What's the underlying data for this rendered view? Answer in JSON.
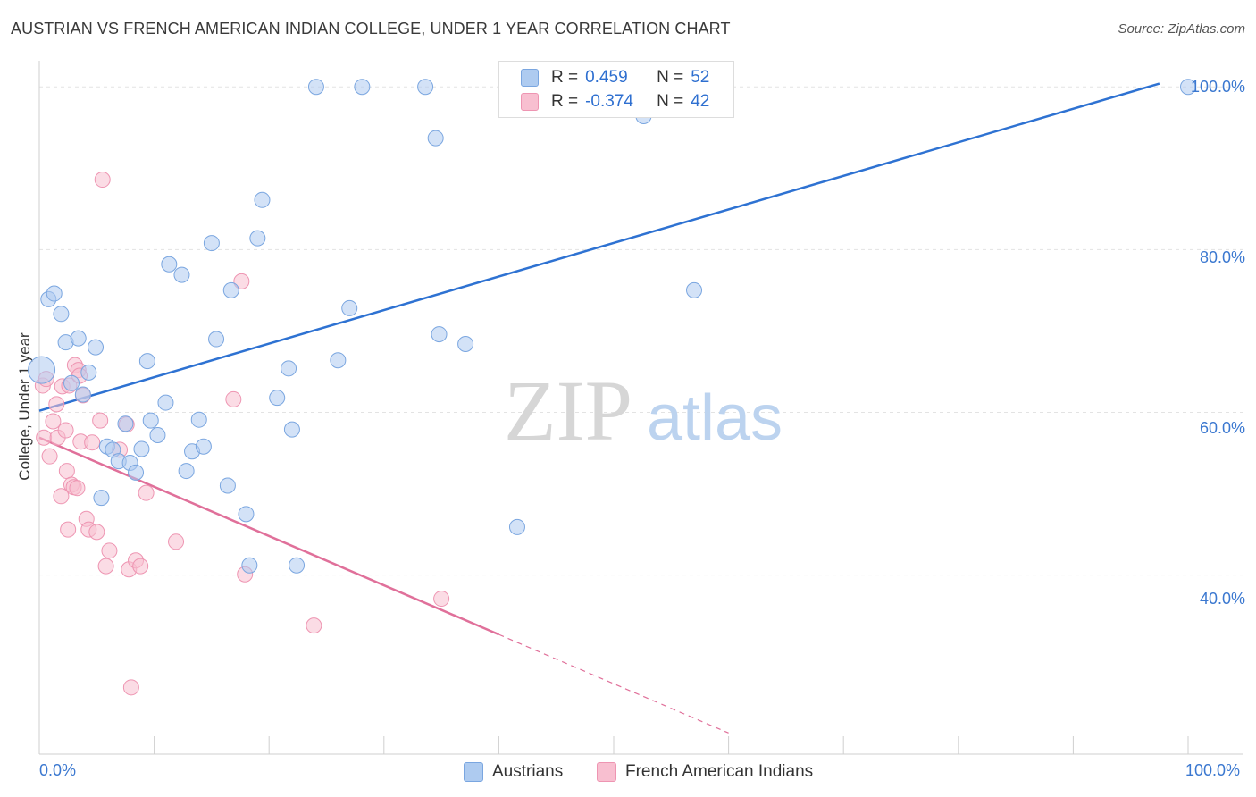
{
  "header": {
    "title": "AUSTRIAN VS FRENCH AMERICAN INDIAN COLLEGE, UNDER 1 YEAR CORRELATION CHART",
    "source": "Source: ZipAtlas.com"
  },
  "watermark": {
    "zip": "ZIP",
    "atlas": "atlas"
  },
  "stats": {
    "austrians": {
      "r_label": "R =",
      "r_value": "0.459",
      "n_label": "N =",
      "n_value": "52"
    },
    "french": {
      "r_label": "R =",
      "r_value": "-0.374",
      "n_label": "N =",
      "n_value": "42"
    }
  },
  "legend": {
    "austrians": "Austrians",
    "french": "French American Indians"
  },
  "colors": {
    "austrians_fill": "#aecbf0",
    "austrians_stroke": "#7aa6e0",
    "austrians_line": "#2e72d2",
    "french_fill": "#f8bfd0",
    "french_stroke": "#ee95b2",
    "french_line": "#e0709a",
    "axis_label": "#3b78d0",
    "grid": "#e3e3e3"
  },
  "chart_data": {
    "type": "scatter",
    "title": "AUSTRIAN VS FRENCH AMERICAN INDIAN COLLEGE, UNDER 1 YEAR CORRELATION CHART",
    "xlabel": "",
    "ylabel": "College, Under 1 year",
    "xlim": [
      0,
      100
    ],
    "ylim": [
      18,
      102
    ],
    "x_tick_labels": [
      "0.0%",
      "100.0%"
    ],
    "y_ticks": [
      40,
      60,
      80,
      100
    ],
    "y_tick_labels": [
      "40.0%",
      "60.0%",
      "80.0%",
      "100.0%"
    ],
    "grid": true,
    "series": [
      {
        "name": "Austrians",
        "trend": {
          "x": [
            0,
            97.5
          ],
          "y": [
            60.2,
            100.4
          ],
          "dashed_from": null
        },
        "points": [
          {
            "x": 0.2,
            "y": 65.2,
            "big": true
          },
          {
            "x": 0.8,
            "y": 73.9
          },
          {
            "x": 1.3,
            "y": 74.6
          },
          {
            "x": 1.9,
            "y": 72.1
          },
          {
            "x": 2.3,
            "y": 68.6
          },
          {
            "x": 2.8,
            "y": 63.6
          },
          {
            "x": 3.4,
            "y": 69.1
          },
          {
            "x": 3.8,
            "y": 62.2
          },
          {
            "x": 4.3,
            "y": 64.9
          },
          {
            "x": 4.9,
            "y": 68.0
          },
          {
            "x": 5.4,
            "y": 49.5
          },
          {
            "x": 5.9,
            "y": 55.8
          },
          {
            "x": 6.4,
            "y": 55.4
          },
          {
            "x": 6.9,
            "y": 54.0
          },
          {
            "x": 7.5,
            "y": 58.6
          },
          {
            "x": 7.9,
            "y": 53.8
          },
          {
            "x": 8.4,
            "y": 52.6
          },
          {
            "x": 8.9,
            "y": 55.5
          },
          {
            "x": 9.4,
            "y": 66.3
          },
          {
            "x": 9.7,
            "y": 59.0
          },
          {
            "x": 10.3,
            "y": 57.2
          },
          {
            "x": 11.0,
            "y": 61.2
          },
          {
            "x": 11.3,
            "y": 78.2
          },
          {
            "x": 12.4,
            "y": 76.9
          },
          {
            "x": 12.8,
            "y": 52.8
          },
          {
            "x": 13.3,
            "y": 55.2
          },
          {
            "x": 13.9,
            "y": 59.1
          },
          {
            "x": 14.3,
            "y": 55.8
          },
          {
            "x": 15.0,
            "y": 80.8
          },
          {
            "x": 15.4,
            "y": 69.0
          },
          {
            "x": 16.4,
            "y": 51.0
          },
          {
            "x": 16.7,
            "y": 75.0
          },
          {
            "x": 18.0,
            "y": 47.5
          },
          {
            "x": 18.3,
            "y": 41.2
          },
          {
            "x": 19.0,
            "y": 81.4
          },
          {
            "x": 19.4,
            "y": 86.1
          },
          {
            "x": 20.7,
            "y": 61.8
          },
          {
            "x": 21.7,
            "y": 65.4
          },
          {
            "x": 22.0,
            "y": 57.9
          },
          {
            "x": 22.4,
            "y": 41.2
          },
          {
            "x": 24.1,
            "y": 100.0
          },
          {
            "x": 26.0,
            "y": 66.4
          },
          {
            "x": 27.0,
            "y": 72.8
          },
          {
            "x": 28.1,
            "y": 100.0
          },
          {
            "x": 33.6,
            "y": 100.0
          },
          {
            "x": 34.5,
            "y": 93.7
          },
          {
            "x": 34.8,
            "y": 69.6
          },
          {
            "x": 37.1,
            "y": 68.4
          },
          {
            "x": 41.6,
            "y": 45.9
          },
          {
            "x": 52.6,
            "y": 96.4
          },
          {
            "x": 57.0,
            "y": 75.0
          },
          {
            "x": 100.0,
            "y": 100.0
          }
        ]
      },
      {
        "name": "French American Indians",
        "trend": {
          "x": [
            0,
            40.0
          ],
          "y": [
            56.9,
            32.7
          ],
          "dashed_to": {
            "x": 60.0,
            "y": 20.6
          }
        },
        "points": [
          {
            "x": 0.3,
            "y": 63.3
          },
          {
            "x": 0.4,
            "y": 56.9
          },
          {
            "x": 0.6,
            "y": 64.1
          },
          {
            "x": 0.9,
            "y": 54.6
          },
          {
            "x": 1.2,
            "y": 58.9
          },
          {
            "x": 1.5,
            "y": 61.0
          },
          {
            "x": 1.6,
            "y": 56.9
          },
          {
            "x": 1.9,
            "y": 49.7
          },
          {
            "x": 2.0,
            "y": 63.2
          },
          {
            "x": 2.3,
            "y": 57.8
          },
          {
            "x": 2.4,
            "y": 52.8
          },
          {
            "x": 2.5,
            "y": 45.6
          },
          {
            "x": 2.6,
            "y": 63.3
          },
          {
            "x": 2.8,
            "y": 51.1
          },
          {
            "x": 3.0,
            "y": 50.8
          },
          {
            "x": 3.3,
            "y": 50.7
          },
          {
            "x": 3.1,
            "y": 65.8
          },
          {
            "x": 3.4,
            "y": 65.2
          },
          {
            "x": 3.5,
            "y": 64.5
          },
          {
            "x": 3.6,
            "y": 56.4
          },
          {
            "x": 3.8,
            "y": 62.1
          },
          {
            "x": 4.1,
            "y": 46.9
          },
          {
            "x": 4.3,
            "y": 45.6
          },
          {
            "x": 4.6,
            "y": 56.3
          },
          {
            "x": 5.0,
            "y": 45.3
          },
          {
            "x": 5.3,
            "y": 59.0
          },
          {
            "x": 5.5,
            "y": 88.6
          },
          {
            "x": 5.8,
            "y": 41.1
          },
          {
            "x": 6.1,
            "y": 43.0
          },
          {
            "x": 7.0,
            "y": 55.4
          },
          {
            "x": 7.6,
            "y": 58.5
          },
          {
            "x": 7.8,
            "y": 40.7
          },
          {
            "x": 8.0,
            "y": 26.2
          },
          {
            "x": 8.4,
            "y": 41.8
          },
          {
            "x": 8.8,
            "y": 41.1
          },
          {
            "x": 9.3,
            "y": 50.1
          },
          {
            "x": 11.9,
            "y": 44.1
          },
          {
            "x": 16.9,
            "y": 61.6
          },
          {
            "x": 17.6,
            "y": 76.1
          },
          {
            "x": 17.9,
            "y": 40.1
          },
          {
            "x": 23.9,
            "y": 33.8
          },
          {
            "x": 35.0,
            "y": 37.1
          }
        ]
      }
    ]
  }
}
